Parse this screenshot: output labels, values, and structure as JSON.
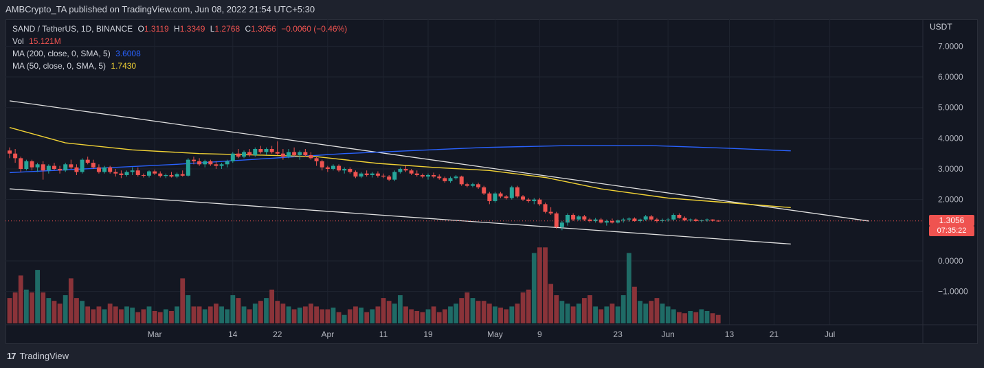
{
  "header": {
    "text": "AMBCrypto_TA published on TradingView.com, Jun 08, 2022 21:54 UTC+5:30"
  },
  "legend": {
    "symbol": "SAND / TetherUS, 1D, BINANCE",
    "o_label": "O",
    "o": "1.3119",
    "h_label": "H",
    "h": "1.3349",
    "l_label": "L",
    "l": "1.2768",
    "c_label": "C",
    "c": "1.3056",
    "change": "−0.0060 (−0.46%)",
    "vol_label": "Vol",
    "vol": "15.121M",
    "ma200_label": "MA (200, close, 0, SMA, 5)",
    "ma200": "3.6008",
    "ma50_label": "MA (50, close, 0, SMA, 5)",
    "ma50": "1.7430"
  },
  "price_tag": {
    "price": "1.3056",
    "countdown": "07:35:22"
  },
  "footer": {
    "brand_mark": "17",
    "brand": "TradingView"
  },
  "colors": {
    "up": "#26a69a",
    "down": "#ef5350",
    "vol_up": "#1f6b66",
    "vol_down": "#8a3339",
    "ma200": "#2962ff",
    "ma50": "#f2d335",
    "trendline": "#e0e0e0"
  },
  "chart_data": {
    "type": "candlestick",
    "title": "SAND / TetherUS, 1D, BINANCE",
    "currency_label": "USDT",
    "y_ticks": [
      "7.0000",
      "6.0000",
      "5.0000",
      "4.0000",
      "3.0000",
      "2.0000",
      "0.0000",
      "−1.0000"
    ],
    "y_tick_values": [
      7,
      6,
      5,
      4,
      3,
      2,
      0,
      -1
    ],
    "x_ticks": [
      "Mar",
      "14",
      "22",
      "Apr",
      "11",
      "19",
      "May",
      "9",
      "23",
      "Jun",
      "13",
      "21",
      "Jul"
    ],
    "x_tick_days": [
      26,
      40,
      48,
      57,
      67,
      75,
      87,
      95,
      109,
      118,
      129,
      137,
      147
    ],
    "last_price": 1.3056,
    "ylim": [
      -1.9,
      7.3
    ],
    "xlim_days": [
      0,
      151
    ],
    "first_date": "2022-02-01",
    "ohlc": [
      [
        3.6,
        3.7,
        3.35,
        3.5
      ],
      [
        3.5,
        3.65,
        3.2,
        3.35
      ],
      [
        3.35,
        3.4,
        2.9,
        3.0
      ],
      [
        3.0,
        3.3,
        2.95,
        3.25
      ],
      [
        3.25,
        3.3,
        2.95,
        3.05
      ],
      [
        3.05,
        3.2,
        2.9,
        3.15
      ],
      [
        3.15,
        3.25,
        2.65,
        2.95
      ],
      [
        2.95,
        3.15,
        2.85,
        3.1
      ],
      [
        3.1,
        3.2,
        2.95,
        3.0
      ],
      [
        3.0,
        3.1,
        2.85,
        2.95
      ],
      [
        2.95,
        3.2,
        2.9,
        3.15
      ],
      [
        3.15,
        3.3,
        3.0,
        3.05
      ],
      [
        3.05,
        3.15,
        2.8,
        2.9
      ],
      [
        2.9,
        3.35,
        2.85,
        3.3
      ],
      [
        3.3,
        3.4,
        3.15,
        3.2
      ],
      [
        3.2,
        3.3,
        3.0,
        3.05
      ],
      [
        3.05,
        3.15,
        2.85,
        2.9
      ],
      [
        2.9,
        3.1,
        2.85,
        3.05
      ],
      [
        3.05,
        3.1,
        2.85,
        2.9
      ],
      [
        2.9,
        3.0,
        2.75,
        2.85
      ],
      [
        2.85,
        2.95,
        2.7,
        2.8
      ],
      [
        2.8,
        2.95,
        2.75,
        2.9
      ],
      [
        2.9,
        3.05,
        2.8,
        2.95
      ],
      [
        2.95,
        3.05,
        2.75,
        2.8
      ],
      [
        2.8,
        2.85,
        2.72,
        2.78
      ],
      [
        2.78,
        2.95,
        2.72,
        2.92
      ],
      [
        2.92,
        2.98,
        2.8,
        2.85
      ],
      [
        2.85,
        2.92,
        2.72,
        2.77
      ],
      [
        2.77,
        2.85,
        2.7,
        2.8
      ],
      [
        2.8,
        2.9,
        2.72,
        2.75
      ],
      [
        2.75,
        2.88,
        2.7,
        2.83
      ],
      [
        2.83,
        2.95,
        2.75,
        2.78
      ],
      [
        2.78,
        3.35,
        2.75,
        3.3
      ],
      [
        3.3,
        3.4,
        3.15,
        3.25
      ],
      [
        3.25,
        3.35,
        3.1,
        3.15
      ],
      [
        3.15,
        3.3,
        3.05,
        3.25
      ],
      [
        3.25,
        3.3,
        3.1,
        3.15
      ],
      [
        3.15,
        3.25,
        3.0,
        3.1
      ],
      [
        3.1,
        3.2,
        3.0,
        3.15
      ],
      [
        3.15,
        3.3,
        3.05,
        3.25
      ],
      [
        3.25,
        3.55,
        3.2,
        3.5
      ],
      [
        3.5,
        3.65,
        3.35,
        3.4
      ],
      [
        3.4,
        3.6,
        3.35,
        3.55
      ],
      [
        3.55,
        3.65,
        3.4,
        3.45
      ],
      [
        3.45,
        3.7,
        3.4,
        3.65
      ],
      [
        3.65,
        3.75,
        3.5,
        3.55
      ],
      [
        3.55,
        3.7,
        3.45,
        3.65
      ],
      [
        3.65,
        3.75,
        3.5,
        3.55
      ],
      [
        3.55,
        3.9,
        3.45,
        3.5
      ],
      [
        3.5,
        3.65,
        3.3,
        3.4
      ],
      [
        3.4,
        3.65,
        3.35,
        3.55
      ],
      [
        3.55,
        3.7,
        3.4,
        3.45
      ],
      [
        3.45,
        3.6,
        3.3,
        3.55
      ],
      [
        3.55,
        3.65,
        3.4,
        3.45
      ],
      [
        3.45,
        3.55,
        3.3,
        3.35
      ],
      [
        3.35,
        3.4,
        3.1,
        3.25
      ],
      [
        3.25,
        3.3,
        2.95,
        3.05
      ],
      [
        3.05,
        3.1,
        2.9,
        3.0
      ],
      [
        3.0,
        3.15,
        2.95,
        3.1
      ],
      [
        3.1,
        3.15,
        2.9,
        2.95
      ],
      [
        2.95,
        3.05,
        2.85,
        3.0
      ],
      [
        3.0,
        3.05,
        2.85,
        2.9
      ],
      [
        2.9,
        2.95,
        2.7,
        2.75
      ],
      [
        2.75,
        2.9,
        2.7,
        2.85
      ],
      [
        2.85,
        2.95,
        2.75,
        2.8
      ],
      [
        2.8,
        2.9,
        2.72,
        2.85
      ],
      [
        2.85,
        2.92,
        2.72,
        2.78
      ],
      [
        2.78,
        2.85,
        2.7,
        2.75
      ],
      [
        2.75,
        2.8,
        2.6,
        2.65
      ],
      [
        2.65,
        2.95,
        2.6,
        2.9
      ],
      [
        2.9,
        3.05,
        2.85,
        3.0
      ],
      [
        3.0,
        3.1,
        2.9,
        2.95
      ],
      [
        2.95,
        3.0,
        2.8,
        2.85
      ],
      [
        2.85,
        2.95,
        2.75,
        2.8
      ],
      [
        2.8,
        2.85,
        2.7,
        2.75
      ],
      [
        2.75,
        2.85,
        2.65,
        2.8
      ],
      [
        2.8,
        2.88,
        2.7,
        2.75
      ],
      [
        2.75,
        2.82,
        2.65,
        2.7
      ],
      [
        2.7,
        2.75,
        2.55,
        2.6
      ],
      [
        2.6,
        2.75,
        2.55,
        2.7
      ],
      [
        2.7,
        2.8,
        2.65,
        2.75
      ],
      [
        2.75,
        2.78,
        2.45,
        2.5
      ],
      [
        2.5,
        2.55,
        2.4,
        2.45
      ],
      [
        2.45,
        2.55,
        2.4,
        2.5
      ],
      [
        2.5,
        2.55,
        2.35,
        2.4
      ],
      [
        2.4,
        2.45,
        2.15,
        2.2
      ],
      [
        2.2,
        2.25,
        1.85,
        1.95
      ],
      [
        1.95,
        2.25,
        1.9,
        2.2
      ],
      [
        2.2,
        2.25,
        2.05,
        2.1
      ],
      [
        2.1,
        2.15,
        2.0,
        2.05
      ],
      [
        2.05,
        2.45,
        2.0,
        2.4
      ],
      [
        2.4,
        2.45,
        2.05,
        2.1
      ],
      [
        2.1,
        2.15,
        1.95,
        2.0
      ],
      [
        2.0,
        2.05,
        1.9,
        1.95
      ],
      [
        1.95,
        2.05,
        1.85,
        2.0
      ],
      [
        2.0,
        2.05,
        1.8,
        1.85
      ],
      [
        1.85,
        1.9,
        1.55,
        1.6
      ],
      [
        1.6,
        1.75,
        1.5,
        1.55
      ],
      [
        1.55,
        1.6,
        1.05,
        1.1
      ],
      [
        1.1,
        1.3,
        1.0,
        1.25
      ],
      [
        1.25,
        1.55,
        1.15,
        1.5
      ],
      [
        1.5,
        1.55,
        1.3,
        1.35
      ],
      [
        1.35,
        1.5,
        1.3,
        1.45
      ],
      [
        1.45,
        1.5,
        1.3,
        1.35
      ],
      [
        1.35,
        1.4,
        1.25,
        1.3
      ],
      [
        1.3,
        1.4,
        1.25,
        1.35
      ],
      [
        1.35,
        1.4,
        1.22,
        1.25
      ],
      [
        1.25,
        1.35,
        1.15,
        1.3
      ],
      [
        1.3,
        1.38,
        1.22,
        1.25
      ],
      [
        1.25,
        1.35,
        1.22,
        1.32
      ],
      [
        1.32,
        1.4,
        1.25,
        1.35
      ],
      [
        1.35,
        1.42,
        1.28,
        1.38
      ],
      [
        1.38,
        1.42,
        1.28,
        1.3
      ],
      [
        1.3,
        1.38,
        1.25,
        1.35
      ],
      [
        1.35,
        1.5,
        1.3,
        1.45
      ],
      [
        1.45,
        1.5,
        1.32,
        1.35
      ],
      [
        1.35,
        1.4,
        1.25,
        1.3
      ],
      [
        1.3,
        1.38,
        1.25,
        1.33
      ],
      [
        1.33,
        1.4,
        1.28,
        1.35
      ],
      [
        1.35,
        1.55,
        1.3,
        1.5
      ],
      [
        1.5,
        1.55,
        1.38,
        1.4
      ],
      [
        1.4,
        1.45,
        1.3,
        1.32
      ],
      [
        1.32,
        1.38,
        1.28,
        1.35
      ],
      [
        1.35,
        1.38,
        1.28,
        1.3
      ],
      [
        1.3,
        1.35,
        1.26,
        1.32
      ],
      [
        1.32,
        1.38,
        1.28,
        1.35
      ],
      [
        1.35,
        1.36,
        1.28,
        1.31
      ],
      [
        1.3119,
        1.3349,
        1.2768,
        1.3056
      ]
    ],
    "volume_rel": [
      0.45,
      0.55,
      0.85,
      0.6,
      0.55,
      0.95,
      0.55,
      0.45,
      0.4,
      0.35,
      0.5,
      0.8,
      0.45,
      0.4,
      0.3,
      0.25,
      0.3,
      0.25,
      0.35,
      0.3,
      0.25,
      0.3,
      0.28,
      0.2,
      0.25,
      0.3,
      0.22,
      0.2,
      0.25,
      0.22,
      0.3,
      0.8,
      0.5,
      0.3,
      0.3,
      0.25,
      0.3,
      0.35,
      0.3,
      0.25,
      0.5,
      0.45,
      0.3,
      0.25,
      0.35,
      0.4,
      0.45,
      0.6,
      0.4,
      0.35,
      0.3,
      0.25,
      0.28,
      0.3,
      0.35,
      0.3,
      0.25,
      0.25,
      0.28,
      0.2,
      0.15,
      0.25,
      0.3,
      0.28,
      0.2,
      0.25,
      0.3,
      0.45,
      0.4,
      0.35,
      0.5,
      0.3,
      0.25,
      0.22,
      0.2,
      0.25,
      0.3,
      0.2,
      0.25,
      0.3,
      0.35,
      0.45,
      0.55,
      0.45,
      0.4,
      0.4,
      0.35,
      0.3,
      0.28,
      0.25,
      0.3,
      0.35,
      0.55,
      0.6,
      1.25,
      1.35,
      1.35,
      0.7,
      0.5,
      0.4,
      0.35,
      0.3,
      0.35,
      0.45,
      0.5,
      0.3,
      0.25,
      0.3,
      0.35,
      0.3,
      0.5,
      1.25,
      0.65,
      0.4,
      0.35,
      0.4,
      0.45,
      0.35,
      0.3,
      0.25,
      0.2,
      0.18,
      0.22,
      0.2,
      0.25,
      0.22,
      0.18,
      0.15
    ],
    "ma200": [
      [
        0,
        2.88
      ],
      [
        30,
        3.15
      ],
      [
        60,
        3.5
      ],
      [
        85,
        3.7
      ],
      [
        100,
        3.76
      ],
      [
        115,
        3.76
      ],
      [
        128,
        3.68
      ],
      [
        140,
        3.59
      ]
    ],
    "ma50": [
      [
        0,
        4.35
      ],
      [
        10,
        3.85
      ],
      [
        22,
        3.62
      ],
      [
        34,
        3.5
      ],
      [
        45,
        3.45
      ],
      [
        55,
        3.4
      ],
      [
        66,
        3.18
      ],
      [
        76,
        3.05
      ],
      [
        86,
        2.95
      ],
      [
        96,
        2.72
      ],
      [
        106,
        2.35
      ],
      [
        118,
        2.05
      ],
      [
        130,
        1.88
      ],
      [
        140,
        1.74
      ]
    ],
    "trend_upper": [
      [
        0,
        5.22
      ],
      [
        154,
        1.3
      ]
    ],
    "trend_lower": [
      [
        0,
        2.35
      ],
      [
        140,
        0.55
      ]
    ]
  }
}
